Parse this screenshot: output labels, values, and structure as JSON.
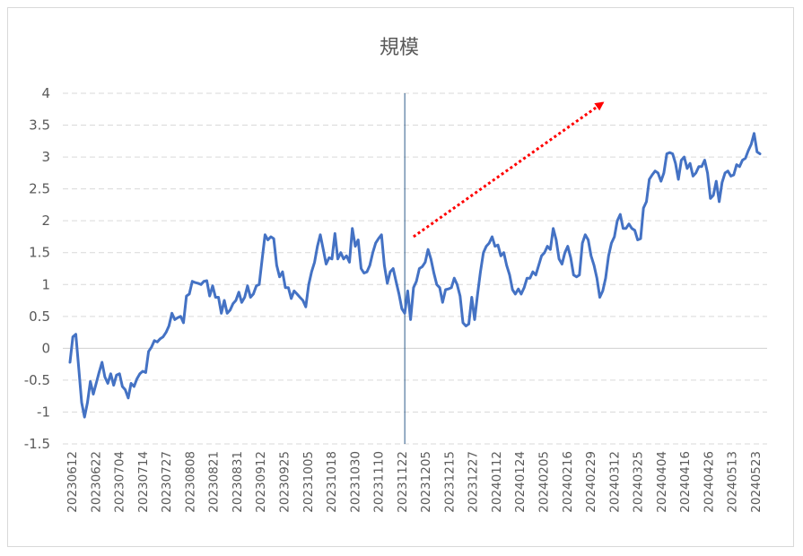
{
  "chart_data": {
    "type": "line",
    "title": "規模",
    "xlabel": "",
    "ylabel": "",
    "ylim": [
      -1.5,
      4
    ],
    "y_ticks": [
      "4",
      "3.5",
      "3",
      "2.5",
      "2",
      "1.5",
      "1",
      "0.5",
      "0",
      "-0.5",
      "-1",
      "-1.5"
    ],
    "x_tick_labels": [
      "20230612",
      "20230622",
      "20230704",
      "20230714",
      "20230727",
      "20230808",
      "20230821",
      "20230831",
      "20230912",
      "20230925",
      "20231005",
      "20231018",
      "20231030",
      "20231110",
      "20231122",
      "20231205",
      "20231215",
      "20231227",
      "20240112",
      "20240124",
      "20240205",
      "20240216",
      "20240229",
      "20240312",
      "20240325",
      "20240404",
      "20240416",
      "20240426",
      "20240513",
      "20240523"
    ],
    "grid": "horizontal dashed",
    "legend": "none",
    "vertical_marker": {
      "after_label": "20231227",
      "index": 115
    },
    "trend_arrow": {
      "from_index": 118,
      "from_value": 1.75,
      "to_index": 183,
      "to_value": 3.85,
      "color": "#ff0000",
      "style": "dotted"
    },
    "series": [
      {
        "color": "#4472c4",
        "values": [
          -0.22,
          0.18,
          0.22,
          -0.3,
          -0.85,
          -1.08,
          -0.85,
          -0.52,
          -0.72,
          -0.55,
          -0.38,
          -0.22,
          -0.45,
          -0.55,
          -0.4,
          -0.58,
          -0.42,
          -0.4,
          -0.6,
          -0.65,
          -0.78,
          -0.55,
          -0.6,
          -0.48,
          -0.4,
          -0.36,
          -0.38,
          -0.05,
          0.02,
          0.12,
          0.1,
          0.15,
          0.18,
          0.25,
          0.35,
          0.55,
          0.45,
          0.48,
          0.5,
          0.4,
          0.82,
          0.85,
          1.05,
          1.03,
          1.02,
          1.0,
          1.05,
          1.06,
          0.82,
          0.98,
          0.8,
          0.8,
          0.55,
          0.75,
          0.55,
          0.6,
          0.7,
          0.75,
          0.88,
          0.72,
          0.8,
          0.98,
          0.8,
          0.85,
          0.98,
          1.0,
          1.4,
          1.78,
          1.7,
          1.75,
          1.72,
          1.3,
          1.12,
          1.2,
          0.95,
          0.95,
          0.78,
          0.9,
          0.85,
          0.8,
          0.75,
          0.65,
          1.0,
          1.2,
          1.35,
          1.6,
          1.78,
          1.55,
          1.32,
          1.42,
          1.4,
          1.8,
          1.4,
          1.5,
          1.4,
          1.45,
          1.35,
          1.88,
          1.6,
          1.7,
          1.25,
          1.18,
          1.2,
          1.3,
          1.5,
          1.65,
          1.72,
          1.78,
          1.3,
          1.02,
          1.2,
          1.25,
          1.05,
          0.85,
          0.62,
          0.55,
          0.9,
          0.45,
          0.95,
          1.05,
          1.25,
          1.28,
          1.35,
          1.55,
          1.4,
          1.18,
          1.0,
          0.95,
          0.72,
          0.92,
          0.93,
          0.95,
          1.1,
          1.0,
          0.82,
          0.4,
          0.35,
          0.38,
          0.8,
          0.45,
          0.85,
          1.2,
          1.5,
          1.6,
          1.65,
          1.75,
          1.6,
          1.62,
          1.45,
          1.5,
          1.3,
          1.15,
          0.92,
          0.85,
          0.93,
          0.85,
          0.95,
          1.1,
          1.1,
          1.2,
          1.15,
          1.3,
          1.45,
          1.5,
          1.6,
          1.55,
          1.88,
          1.7,
          1.4,
          1.32,
          1.5,
          1.6,
          1.42,
          1.15,
          1.12,
          1.15,
          1.65,
          1.78,
          1.7,
          1.45,
          1.3,
          1.1,
          0.8,
          0.9,
          1.1,
          1.45,
          1.65,
          1.75,
          2.0,
          2.1,
          1.88,
          1.88,
          1.95,
          1.88,
          1.85,
          1.7,
          1.72,
          2.2,
          2.3,
          2.65,
          2.72,
          2.78,
          2.75,
          2.62,
          2.75,
          3.05,
          3.07,
          3.05,
          2.9,
          2.65,
          2.95,
          3.0,
          2.82,
          2.9,
          2.7,
          2.75,
          2.85,
          2.85,
          2.95,
          2.75,
          2.35,
          2.4,
          2.62,
          2.3,
          2.6,
          2.75,
          2.78,
          2.7,
          2.72,
          2.88,
          2.85,
          2.95,
          2.98,
          3.1,
          3.2,
          3.37,
          3.08,
          3.05
        ]
      }
    ]
  }
}
